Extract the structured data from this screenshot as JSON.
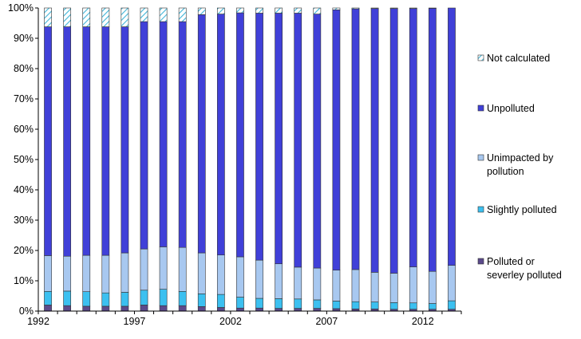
{
  "chart_data": {
    "type": "bar",
    "stacked": true,
    "percent_stacked": true,
    "x": [
      1992,
      1993,
      1994,
      1995,
      1996,
      1997,
      1998,
      1999,
      2000,
      2001,
      2002,
      2003,
      2004,
      2005,
      2006,
      2007,
      2008,
      2009,
      2010,
      2011,
      2012,
      2013
    ],
    "x_tick_labels": [
      "1992",
      "1997",
      "2002",
      "2007",
      "2012"
    ],
    "y_tick_labels": [
      "0%",
      "10%",
      "20%",
      "30%",
      "40%",
      "50%",
      "60%",
      "70%",
      "80%",
      "90%",
      "100%"
    ],
    "ylim": [
      0,
      100
    ],
    "legend_position": "right",
    "series": [
      {
        "name": "Polluted or severley polluted",
        "color": "#5b4a8b",
        "values": [
          2.0,
          1.8,
          1.6,
          1.6,
          1.6,
          2.0,
          1.8,
          1.8,
          1.5,
          1.2,
          1.0,
          1.0,
          0.9,
          0.9,
          0.9,
          0.8,
          0.7,
          0.7,
          0.6,
          0.6,
          0.6,
          0.6
        ]
      },
      {
        "name": "Slightly polluted",
        "color": "#3cc0f0",
        "values": [
          4.5,
          4.8,
          4.8,
          4.4,
          4.6,
          4.9,
          5.4,
          4.7,
          4.2,
          4.3,
          3.6,
          3.2,
          3.2,
          3.1,
          2.8,
          2.5,
          2.4,
          2.3,
          2.2,
          2.1,
          1.9,
          2.8
        ]
      },
      {
        "name": "Unimpacted by pollution",
        "color": "#a8c8f0",
        "values": [
          11.8,
          11.5,
          12.0,
          12.4,
          13.0,
          13.6,
          14.0,
          14.5,
          13.5,
          13.0,
          13.3,
          12.6,
          11.5,
          10.5,
          10.5,
          10.2,
          10.6,
          9.8,
          9.7,
          11.9,
          10.6,
          11.7
        ]
      },
      {
        "name": "Unpolluted",
        "color": "#4040d8",
        "values": [
          75.5,
          75.7,
          75.4,
          75.4,
          74.6,
          75.0,
          74.3,
          74.5,
          78.6,
          79.5,
          80.5,
          81.5,
          82.7,
          83.8,
          83.8,
          85.9,
          86.0,
          87.0,
          87.3,
          85.2,
          86.8,
          84.9
        ]
      },
      {
        "name": "Not calculated",
        "color": "#b8e8f4",
        "pattern": "hatch",
        "values": [
          6.2,
          6.2,
          6.2,
          6.2,
          6.2,
          4.5,
          4.5,
          4.5,
          2.2,
          2.0,
          1.6,
          1.7,
          1.7,
          1.7,
          2.0,
          0.6,
          0.3,
          0.2,
          0.2,
          0.2,
          0.1,
          0.0
        ]
      }
    ],
    "legend_order": [
      "Not calculated",
      "Unpolluted",
      "Unimpacted by pollution",
      "Slightly polluted",
      "Polluted or severley polluted"
    ],
    "legend_lines": {
      "Not calculated": [
        "Not calculated"
      ],
      "Unpolluted": [
        "Unpolluted"
      ],
      "Unimpacted by pollution": [
        "Unimpacted by",
        "pollution"
      ],
      "Slightly polluted": [
        "Slightly polluted"
      ],
      "Polluted or severley polluted": [
        "Polluted or",
        "severley polluted"
      ]
    }
  }
}
